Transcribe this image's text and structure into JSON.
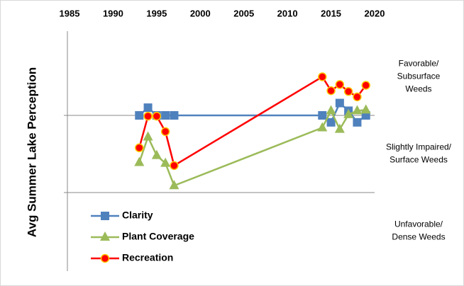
{
  "chart_data": {
    "type": "line",
    "y_label": "Avg Summer Lake Perception",
    "xlim": [
      1985,
      2020
    ],
    "xticks": [
      1985,
      1990,
      1995,
      2000,
      2005,
      2010,
      2015,
      2020
    ],
    "ylim": [
      0,
      3
    ],
    "yticks": [
      1,
      2
    ],
    "grid": true,
    "legend": "lower left",
    "annotations": [
      [
        "Favorable/",
        "Subsurface",
        "Weeds"
      ],
      [
        "Slightly Impaired/",
        "Surface Weeds"
      ],
      [
        "Unfavorable/",
        "Dense Weeds"
      ]
    ],
    "x": [
      1993,
      1994,
      1995,
      1996,
      1997,
      2014,
      2015,
      2016,
      2017,
      2018,
      2019
    ],
    "series": [
      {
        "name": "Clarity",
        "color": "#4f81bd",
        "marker": "square",
        "values": [
          2.0,
          2.1,
          2.0,
          2.0,
          2.0,
          2.0,
          1.91,
          2.16,
          2.06,
          1.91,
          2.0
        ]
      },
      {
        "name": "Plant Coverage",
        "color": "#9bbb59",
        "marker": "triangle",
        "values": [
          1.39,
          1.72,
          1.48,
          1.38,
          1.09,
          1.84,
          2.06,
          1.82,
          2.01,
          2.06,
          2.07
        ]
      },
      {
        "name": "Recreation",
        "color": "#ff0000",
        "marker": "circle",
        "values": [
          1.58,
          1.99,
          1.99,
          1.79,
          1.35,
          2.5,
          2.32,
          2.4,
          2.31,
          2.24,
          2.39
        ]
      }
    ]
  }
}
